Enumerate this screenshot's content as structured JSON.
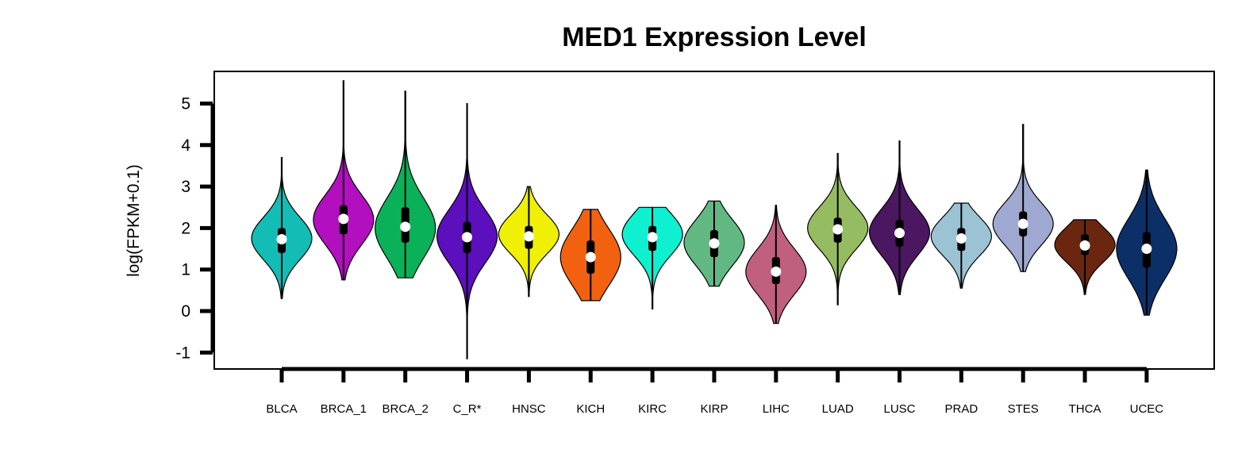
{
  "chart_data": {
    "type": "violin",
    "title": "MED1 Expression Level",
    "xlabel": "",
    "ylabel": "log(FPKM+0.1)",
    "ylim": [
      -1.4,
      5.8
    ],
    "yticks": [
      -1,
      0,
      1,
      2,
      3,
      4,
      5
    ],
    "categories": [
      "BLCA",
      "BRCA_1",
      "BRCA_2",
      "C_R*",
      "HNSC",
      "KICH",
      "KIRC",
      "KIRP",
      "LIHC",
      "LUAD",
      "LUSC",
      "PRAD",
      "STES",
      "THCA",
      "UCEC"
    ],
    "colors": [
      "#13bcb4",
      "#b20fbf",
      "#0bb158",
      "#5c0fbd",
      "#f0f006",
      "#f2610f",
      "#0ef0cf",
      "#62b882",
      "#c0607e",
      "#96bc62",
      "#4a1760",
      "#9cc3d4",
      "#9ea8d0",
      "#6b2610",
      "#0c2f68"
    ],
    "violins": [
      {
        "category": "BLCA",
        "min": 0.3,
        "max": 3.7,
        "q1": 1.4,
        "median": 1.73,
        "q3": 2.0,
        "mode": 1.75,
        "width": 0.4
      },
      {
        "category": "BRCA_1",
        "min": 0.75,
        "max": 5.55,
        "q1": 1.85,
        "median": 2.22,
        "q3": 2.55,
        "mode": 2.2,
        "width": 0.4
      },
      {
        "category": "BRCA_2",
        "min": 0.8,
        "max": 5.3,
        "q1": 1.65,
        "median": 2.03,
        "q3": 2.5,
        "mode": 2.0,
        "width": 0.4
      },
      {
        "category": "C_R*",
        "min": -1.15,
        "max": 5.0,
        "q1": 1.4,
        "median": 1.78,
        "q3": 2.15,
        "mode": 1.8,
        "width": 0.4
      },
      {
        "category": "HNSC",
        "min": 0.35,
        "max": 3.0,
        "q1": 1.5,
        "median": 1.8,
        "q3": 2.05,
        "mode": 1.85,
        "width": 0.4
      },
      {
        "category": "KICH",
        "min": 0.25,
        "max": 2.45,
        "q1": 0.9,
        "median": 1.3,
        "q3": 1.7,
        "mode": 1.3,
        "width": 0.4
      },
      {
        "category": "KIRC",
        "min": 0.05,
        "max": 2.5,
        "q1": 1.45,
        "median": 1.78,
        "q3": 2.05,
        "mode": 1.85,
        "width": 0.4
      },
      {
        "category": "KIRP",
        "min": 0.6,
        "max": 2.65,
        "q1": 1.3,
        "median": 1.63,
        "q3": 1.95,
        "mode": 1.65,
        "width": 0.4
      },
      {
        "category": "LIHC",
        "min": -0.3,
        "max": 2.55,
        "q1": 0.65,
        "median": 0.95,
        "q3": 1.3,
        "mode": 0.95,
        "width": 0.4
      },
      {
        "category": "LUAD",
        "min": 0.15,
        "max": 3.8,
        "q1": 1.65,
        "median": 1.97,
        "q3": 2.25,
        "mode": 2.0,
        "width": 0.4
      },
      {
        "category": "LUSC",
        "min": 0.4,
        "max": 4.1,
        "q1": 1.55,
        "median": 1.88,
        "q3": 2.2,
        "mode": 1.9,
        "width": 0.4
      },
      {
        "category": "PRAD",
        "min": 0.55,
        "max": 2.6,
        "q1": 1.45,
        "median": 1.75,
        "q3": 2.0,
        "mode": 1.8,
        "width": 0.4
      },
      {
        "category": "STES",
        "min": 0.95,
        "max": 4.5,
        "q1": 1.8,
        "median": 2.1,
        "q3": 2.4,
        "mode": 2.1,
        "width": 0.4
      },
      {
        "category": "THCA",
        "min": 0.4,
        "max": 2.2,
        "q1": 1.35,
        "median": 1.58,
        "q3": 1.85,
        "mode": 1.6,
        "width": 0.4
      },
      {
        "category": "UCEC",
        "min": -0.1,
        "max": 3.4,
        "q1": 1.05,
        "median": 1.5,
        "q3": 1.9,
        "mode": 1.5,
        "width": 0.4
      }
    ],
    "legend": "none",
    "grid": false
  }
}
